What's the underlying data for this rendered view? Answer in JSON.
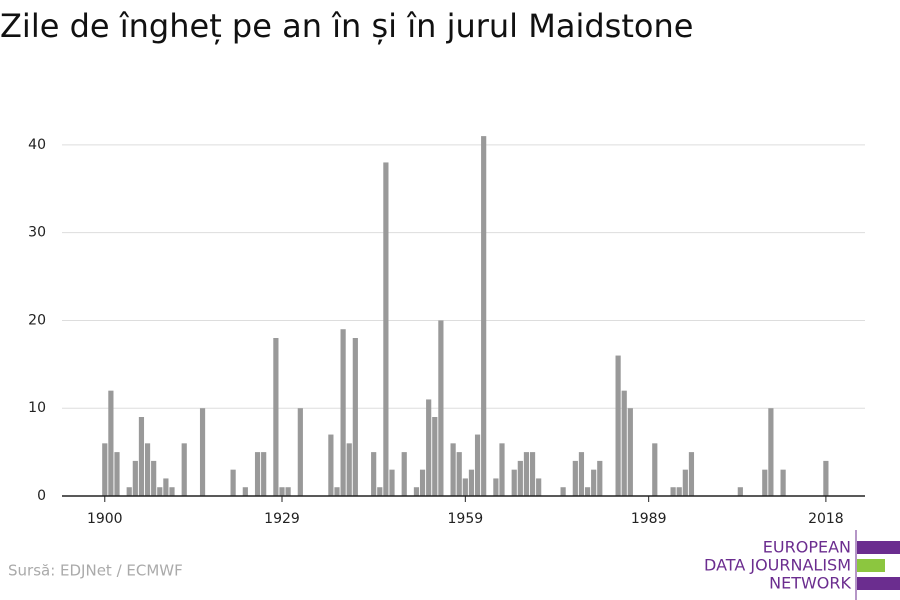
{
  "chart_data": {
    "type": "bar",
    "title": "Zile de îngheț pe an în și în jurul Maidstone",
    "source": "Sursă: EDJNet / ECMWF",
    "logo": [
      "EUROPEAN",
      "DATA JOURNALISM",
      "NETWORK"
    ],
    "color": "#999999",
    "x": [
      1900,
      1901,
      1902,
      1903,
      1904,
      1905,
      1906,
      1907,
      1908,
      1909,
      1910,
      1911,
      1912,
      1913,
      1914,
      1915,
      1916,
      1917,
      1918,
      1919,
      1920,
      1921,
      1922,
      1923,
      1924,
      1925,
      1926,
      1927,
      1928,
      1929,
      1930,
      1931,
      1932,
      1933,
      1934,
      1935,
      1936,
      1937,
      1938,
      1939,
      1940,
      1941,
      1942,
      1943,
      1944,
      1945,
      1946,
      1947,
      1948,
      1949,
      1950,
      1951,
      1952,
      1953,
      1954,
      1955,
      1956,
      1957,
      1958,
      1959,
      1960,
      1961,
      1962,
      1963,
      1964,
      1965,
      1966,
      1967,
      1968,
      1969,
      1970,
      1971,
      1972,
      1973,
      1974,
      1975,
      1976,
      1977,
      1978,
      1979,
      1980,
      1981,
      1982,
      1983,
      1984,
      1985,
      1986,
      1987,
      1988,
      1989,
      1990,
      1991,
      1992,
      1993,
      1994,
      1995,
      1996,
      1997,
      1998,
      1999,
      2000,
      2001,
      2002,
      2003,
      2004,
      2005,
      2006,
      2007,
      2008,
      2009,
      2010,
      2011,
      2012,
      2013,
      2014,
      2015,
      2016,
      2017,
      2018
    ],
    "values": [
      6,
      12,
      5,
      0,
      1,
      4,
      9,
      6,
      4,
      1,
      2,
      1,
      0,
      6,
      0,
      0,
      10,
      0,
      0,
      0,
      0,
      3,
      0,
      1,
      0,
      5,
      5,
      0,
      18,
      1,
      1,
      0,
      10,
      0,
      0,
      0,
      0,
      7,
      1,
      19,
      6,
      18,
      0,
      0,
      5,
      1,
      38,
      3,
      0,
      5,
      0,
      1,
      3,
      11,
      9,
      20,
      0,
      6,
      5,
      2,
      3,
      7,
      41,
      0,
      2,
      6,
      0,
      3,
      4,
      5,
      5,
      2,
      0,
      0,
      0,
      1,
      0,
      4,
      5,
      1,
      3,
      4,
      0,
      0,
      16,
      12,
      10,
      0,
      0,
      0,
      6,
      0,
      0,
      1,
      1,
      3,
      5,
      0,
      0,
      0,
      0,
      0,
      0,
      0,
      1,
      0,
      0,
      0,
      3,
      10,
      0,
      3,
      0,
      0,
      0,
      0,
      0,
      0,
      4
    ],
    "xlim": [
      1893,
      2024.4
    ],
    "xticks": [
      1900,
      1929,
      1959,
      1989,
      2018
    ],
    "ylim": [
      0,
      45
    ],
    "yticks": [
      0,
      10,
      20,
      30,
      40
    ],
    "grid": true
  }
}
